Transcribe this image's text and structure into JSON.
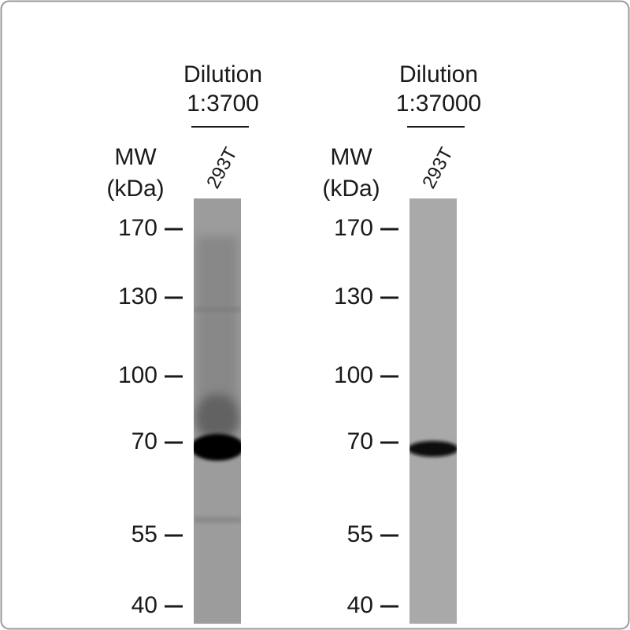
{
  "panels": [
    {
      "title": [
        "Dilution",
        "1:3700"
      ],
      "lane": "293T",
      "mw_label": [
        "MW",
        "(kDa)"
      ],
      "markers": [
        "170",
        "130",
        "100",
        "70",
        "55",
        "40"
      ]
    },
    {
      "title": [
        "Dilution",
        "1:37000"
      ],
      "lane": "293T",
      "mw_label": [
        "MW",
        "(kDa)"
      ],
      "markers": [
        "170",
        "130",
        "100",
        "70",
        "55",
        "40"
      ]
    }
  ]
}
